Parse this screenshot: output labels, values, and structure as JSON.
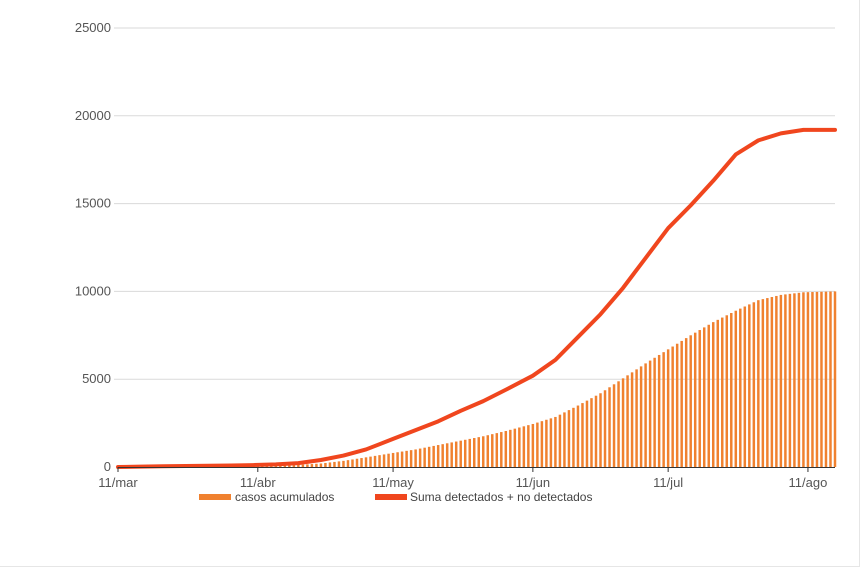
{
  "chart_data": {
    "type": "bar+line",
    "title": "",
    "xlabel": "",
    "ylabel": "",
    "ylim": [
      0,
      25000
    ],
    "yticks": [
      0,
      5000,
      10000,
      15000,
      20000,
      25000
    ],
    "xrange": [
      "2020-03-11",
      "2020-08-17"
    ],
    "xticks": [
      {
        "date": "2020-03-11",
        "label": "11/mar"
      },
      {
        "date": "2020-04-11",
        "label": "11/abr"
      },
      {
        "date": "2020-05-11",
        "label": "11/may"
      },
      {
        "date": "2020-06-11",
        "label": "11/jun"
      },
      {
        "date": "2020-07-11",
        "label": "11/jul"
      },
      {
        "date": "2020-08-11",
        "label": "11/ago"
      }
    ],
    "grid": true,
    "legend_position": "bottom",
    "series": [
      {
        "name": "casos acumulados",
        "kind": "bar",
        "color": "#f0812f",
        "points": [
          [
            "2020-03-11",
            0
          ],
          [
            "2020-03-16",
            10
          ],
          [
            "2020-03-21",
            25
          ],
          [
            "2020-03-26",
            40
          ],
          [
            "2020-03-31",
            55
          ],
          [
            "2020-04-05",
            70
          ],
          [
            "2020-04-10",
            85
          ],
          [
            "2020-04-15",
            100
          ],
          [
            "2020-04-20",
            120
          ],
          [
            "2020-04-25",
            200
          ],
          [
            "2020-04-30",
            350
          ],
          [
            "2020-05-05",
            550
          ],
          [
            "2020-05-11",
            800
          ],
          [
            "2020-05-16",
            1000
          ],
          [
            "2020-05-21",
            1250
          ],
          [
            "2020-05-26",
            1500
          ],
          [
            "2020-05-31",
            1750
          ],
          [
            "2020-06-05",
            2050
          ],
          [
            "2020-06-11",
            2450
          ],
          [
            "2020-06-16",
            2850
          ],
          [
            "2020-06-21",
            3500
          ],
          [
            "2020-06-26",
            4200
          ],
          [
            "2020-07-01",
            5050
          ],
          [
            "2020-07-06",
            5900
          ],
          [
            "2020-07-11",
            6700
          ],
          [
            "2020-07-16",
            7500
          ],
          [
            "2020-07-21",
            8250
          ],
          [
            "2020-07-26",
            8900
          ],
          [
            "2020-07-31",
            9500
          ],
          [
            "2020-08-05",
            9800
          ],
          [
            "2020-08-10",
            9950
          ],
          [
            "2020-08-17",
            10000
          ]
        ]
      },
      {
        "name": "Suma detectados + no detectados",
        "kind": "line",
        "color": "#f0461e",
        "points": [
          [
            "2020-03-11",
            0
          ],
          [
            "2020-03-16",
            20
          ],
          [
            "2020-03-21",
            40
          ],
          [
            "2020-03-26",
            55
          ],
          [
            "2020-03-31",
            70
          ],
          [
            "2020-04-05",
            85
          ],
          [
            "2020-04-10",
            110
          ],
          [
            "2020-04-15",
            150
          ],
          [
            "2020-04-20",
            220
          ],
          [
            "2020-04-25",
            400
          ],
          [
            "2020-04-30",
            650
          ],
          [
            "2020-05-05",
            1000
          ],
          [
            "2020-05-11",
            1600
          ],
          [
            "2020-05-16",
            2100
          ],
          [
            "2020-05-21",
            2600
          ],
          [
            "2020-05-26",
            3200
          ],
          [
            "2020-05-31",
            3750
          ],
          [
            "2020-06-05",
            4400
          ],
          [
            "2020-06-11",
            5200
          ],
          [
            "2020-06-16",
            6100
          ],
          [
            "2020-06-21",
            7400
          ],
          [
            "2020-06-26",
            8700
          ],
          [
            "2020-07-01",
            10200
          ],
          [
            "2020-07-06",
            11900
          ],
          [
            "2020-07-11",
            13600
          ],
          [
            "2020-07-16",
            14900
          ],
          [
            "2020-07-21",
            16300
          ],
          [
            "2020-07-26",
            17800
          ],
          [
            "2020-07-31",
            18600
          ],
          [
            "2020-08-05",
            19000
          ],
          [
            "2020-08-10",
            19200
          ],
          [
            "2020-08-17",
            19200
          ]
        ]
      }
    ]
  }
}
